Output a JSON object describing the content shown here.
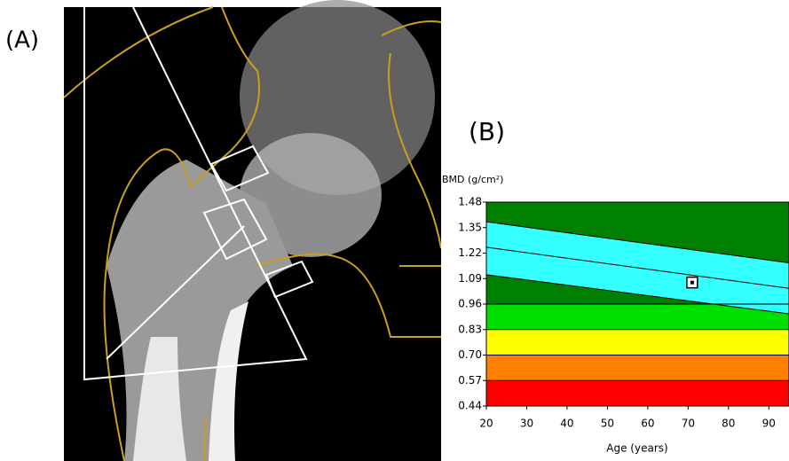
{
  "panels": {
    "a_label": "(A)",
    "b_label": "(B)"
  },
  "chart_data": {
    "type": "line",
    "ylabel": "BMD (g/cm²)",
    "xlabel": "Age (years)",
    "xlim": [
      20,
      95
    ],
    "xticks": [
      20,
      30,
      40,
      50,
      60,
      70,
      80,
      90
    ],
    "ylim": [
      0.44,
      1.48
    ],
    "yticks": [
      1.48,
      1.35,
      1.22,
      1.09,
      0.96,
      0.83,
      {
        "value": 0.7,
        "label": "0.70"
      },
      0.57,
      0.44
    ],
    "zones": [
      {
        "from": 0.44,
        "to": 0.57,
        "color": "#ff0000"
      },
      {
        "from": 0.57,
        "to": 0.7,
        "color": "#ff8000"
      },
      {
        "from": 0.7,
        "to": 0.83,
        "color": "#ffff00"
      },
      {
        "from": 0.83,
        "to": 0.96,
        "color": "#00e000"
      },
      {
        "from": 0.96,
        "to": 1.48,
        "color": "#008000"
      }
    ],
    "band_color": "#33ffff",
    "reference_lines": [
      {
        "x": [
          20,
          95
        ],
        "values": [
          1.38,
          1.17
        ]
      },
      {
        "x": [
          20,
          95
        ],
        "values": [
          1.25,
          1.04
        ]
      },
      {
        "x": [
          20,
          95
        ],
        "values": [
          1.11,
          0.91
        ]
      }
    ],
    "point": {
      "x": 71,
      "y": 1.07
    }
  }
}
